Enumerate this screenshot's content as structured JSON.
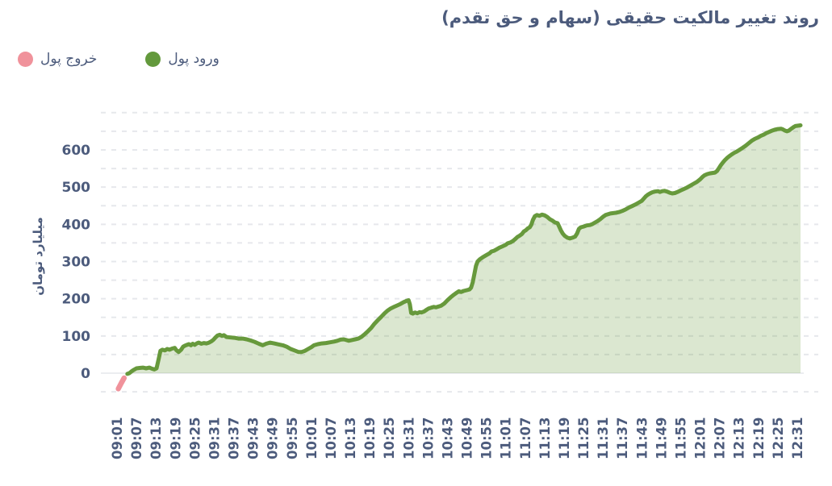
{
  "title": "روند تغییر مالکیت حقیقی (سهام و حق تقدم)",
  "legend": {
    "outflow": {
      "label": "خروج پول",
      "color": "#f0929b"
    },
    "inflow": {
      "label": "ورود پول",
      "color": "#63993c"
    }
  },
  "y_axis": {
    "title": "میلیارد تومان",
    "ticks": [
      0,
      100,
      200,
      300,
      400,
      500,
      600
    ]
  },
  "x_axis": {
    "ticks": [
      "09:01",
      "09:07",
      "09:13",
      "09:19",
      "09:25",
      "09:31",
      "09:37",
      "09:43",
      "09:49",
      "09:55",
      "10:01",
      "10:07",
      "10:13",
      "10:19",
      "10:25",
      "10:31",
      "10:37",
      "10:43",
      "10:49",
      "10:55",
      "11:01",
      "11:07",
      "11:13",
      "11:19",
      "11:25",
      "11:31",
      "11:37",
      "11:43",
      "11:49",
      "11:55",
      "12:01",
      "12:07",
      "12:13",
      "12:19",
      "12:25",
      "12:31"
    ]
  },
  "chart_data": {
    "type": "area",
    "title": "روند تغییر مالکیت حقیقی (سهام و حق تقدم)",
    "ylabel": "میلیارد تومان",
    "x_start": "09:01",
    "x_end": "12:31",
    "x_tick_interval_minutes": 6,
    "ylim": [
      -60,
      700
    ],
    "grid_step": 50,
    "grid_dashed": true,
    "legend_position": "top-left",
    "series": [
      {
        "name": "ورود پول",
        "color": "#67993c",
        "fill": "rgba(103,153,60,0.24)",
        "points_format": "[minutes_after_09:01, billion_toman]",
        "points": [
          [
            3.2,
            -2
          ],
          [
            3.8,
            0
          ],
          [
            4.5,
            5
          ],
          [
            5,
            8
          ],
          [
            6,
            13
          ],
          [
            7,
            14
          ],
          [
            8,
            15
          ],
          [
            9,
            13
          ],
          [
            10,
            15
          ],
          [
            10.8,
            12
          ],
          [
            11.5,
            10
          ],
          [
            12.2,
            13
          ],
          [
            12.8,
            36
          ],
          [
            13.4,
            60
          ],
          [
            14,
            63
          ],
          [
            14.8,
            61
          ],
          [
            15.5,
            65
          ],
          [
            16.2,
            63
          ],
          [
            17,
            66
          ],
          [
            17.8,
            68
          ],
          [
            18.3,
            62
          ],
          [
            19,
            57
          ],
          [
            19.8,
            63
          ],
          [
            20.4,
            71
          ],
          [
            21,
            74
          ],
          [
            21.6,
            76
          ],
          [
            22.2,
            78
          ],
          [
            22.8,
            75
          ],
          [
            23.4,
            79
          ],
          [
            24,
            76
          ],
          [
            24.6,
            80
          ],
          [
            25.2,
            82
          ],
          [
            26,
            79
          ],
          [
            26.8,
            81
          ],
          [
            27.6,
            80
          ],
          [
            28.4,
            82
          ],
          [
            29.2,
            86
          ],
          [
            29.8,
            90
          ],
          [
            30.4,
            96
          ],
          [
            31,
            101
          ],
          [
            31.7,
            103
          ],
          [
            32.4,
            100
          ],
          [
            33,
            102
          ],
          [
            33.8,
            97
          ],
          [
            35,
            96
          ],
          [
            36.2,
            95
          ],
          [
            37.5,
            93
          ],
          [
            38.8,
            93
          ],
          [
            40,
            91
          ],
          [
            41.2,
            88
          ],
          [
            42.5,
            84
          ],
          [
            43.8,
            79
          ],
          [
            45,
            75
          ],
          [
            46,
            79
          ],
          [
            47.2,
            82
          ],
          [
            48.5,
            80
          ],
          [
            50,
            77
          ],
          [
            51.2,
            75
          ],
          [
            52.4,
            71
          ],
          [
            53.6,
            65
          ],
          [
            54.8,
            61
          ],
          [
            56,
            57
          ],
          [
            57,
            57
          ],
          [
            58,
            60
          ],
          [
            59,
            65
          ],
          [
            60,
            70
          ],
          [
            60.8,
            75
          ],
          [
            62,
            78
          ],
          [
            63.2,
            80
          ],
          [
            64.5,
            81
          ],
          [
            65.8,
            83
          ],
          [
            67,
            85
          ],
          [
            68,
            87
          ],
          [
            69,
            90
          ],
          [
            70,
            91
          ],
          [
            70.8,
            89
          ],
          [
            71.5,
            87
          ],
          [
            72.5,
            89
          ],
          [
            73.5,
            91
          ],
          [
            74.5,
            93
          ],
          [
            75.5,
            98
          ],
          [
            76.5,
            105
          ],
          [
            77.5,
            113
          ],
          [
            78.5,
            122
          ],
          [
            79.5,
            133
          ],
          [
            80.5,
            142
          ],
          [
            81.5,
            151
          ],
          [
            82.5,
            160
          ],
          [
            83.5,
            168
          ],
          [
            84.5,
            174
          ],
          [
            85.5,
            178
          ],
          [
            86.5,
            182
          ],
          [
            87.5,
            186
          ],
          [
            88.5,
            191
          ],
          [
            89.3,
            194
          ],
          [
            90,
            196
          ],
          [
            90.4,
            185
          ],
          [
            90.8,
            162
          ],
          [
            91.3,
            160
          ],
          [
            92,
            163
          ],
          [
            92.7,
            161
          ],
          [
            93.4,
            164
          ],
          [
            94,
            163
          ],
          [
            94.8,
            166
          ],
          [
            95.5,
            170
          ],
          [
            96.2,
            174
          ],
          [
            97,
            176
          ],
          [
            97.8,
            178
          ],
          [
            98.5,
            177
          ],
          [
            99.2,
            179
          ],
          [
            100,
            181
          ],
          [
            101,
            187
          ],
          [
            102,
            196
          ],
          [
            103,
            204
          ],
          [
            104,
            211
          ],
          [
            104.8,
            216
          ],
          [
            105.5,
            220
          ],
          [
            106.2,
            218
          ],
          [
            107,
            221
          ],
          [
            108,
            223
          ],
          [
            108.8,
            225
          ],
          [
            109.3,
            230
          ],
          [
            109.8,
            244
          ],
          [
            110.3,
            266
          ],
          [
            110.8,
            288
          ],
          [
            111.3,
            300
          ],
          [
            112,
            306
          ],
          [
            113,
            312
          ],
          [
            114,
            317
          ],
          [
            115,
            322
          ],
          [
            115.6,
            327
          ],
          [
            116.4,
            329
          ],
          [
            117.2,
            333
          ],
          [
            118,
            337
          ],
          [
            119,
            341
          ],
          [
            120,
            345
          ],
          [
            120.6,
            349
          ],
          [
            121.4,
            351
          ],
          [
            122.2,
            355
          ],
          [
            123,
            361
          ],
          [
            123.6,
            366
          ],
          [
            124.2,
            369
          ],
          [
            125,
            374
          ],
          [
            125.6,
            381
          ],
          [
            126.2,
            384
          ],
          [
            126.8,
            389
          ],
          [
            127.4,
            392
          ],
          [
            127.9,
            399
          ],
          [
            128.4,
            412
          ],
          [
            129,
            422
          ],
          [
            129.6,
            425
          ],
          [
            130.4,
            423
          ],
          [
            131.2,
            426
          ],
          [
            132,
            424
          ],
          [
            132.8,
            420
          ],
          [
            133.6,
            414
          ],
          [
            134.4,
            410
          ],
          [
            135.2,
            405
          ],
          [
            136,
            403
          ],
          [
            136.4,
            396
          ],
          [
            137,
            384
          ],
          [
            137.6,
            375
          ],
          [
            138.2,
            369
          ],
          [
            139,
            364
          ],
          [
            139.8,
            362
          ],
          [
            140.6,
            364
          ],
          [
            141.4,
            367
          ],
          [
            142,
            375
          ],
          [
            142.6,
            388
          ],
          [
            143.2,
            392
          ],
          [
            144,
            394
          ],
          [
            145,
            397
          ],
          [
            146,
            398
          ],
          [
            146.8,
            401
          ],
          [
            147.6,
            405
          ],
          [
            148.4,
            409
          ],
          [
            149.2,
            414
          ],
          [
            150,
            420
          ],
          [
            150.8,
            425
          ],
          [
            151.5,
            427
          ],
          [
            152.3,
            429
          ],
          [
            153,
            430
          ],
          [
            154,
            431
          ],
          [
            155,
            433
          ],
          [
            156,
            436
          ],
          [
            157,
            440
          ],
          [
            158,
            445
          ],
          [
            159,
            449
          ],
          [
            160,
            453
          ],
          [
            161,
            458
          ],
          [
            162,
            463
          ],
          [
            162.6,
            469
          ],
          [
            163.2,
            475
          ],
          [
            163.8,
            479
          ],
          [
            164.5,
            483
          ],
          [
            165.2,
            486
          ],
          [
            166,
            488
          ],
          [
            167,
            489
          ],
          [
            167.6,
            487
          ],
          [
            168.3,
            489
          ],
          [
            169,
            490
          ],
          [
            169.8,
            488
          ],
          [
            170.6,
            485
          ],
          [
            171.4,
            483
          ],
          [
            172.2,
            484
          ],
          [
            173,
            487
          ],
          [
            174,
            491
          ],
          [
            175,
            495
          ],
          [
            176,
            499
          ],
          [
            177,
            504
          ],
          [
            178,
            509
          ],
          [
            179,
            514
          ],
          [
            180,
            521
          ],
          [
            180.8,
            528
          ],
          [
            181.4,
            532
          ],
          [
            182.2,
            535
          ],
          [
            183,
            537
          ],
          [
            183.8,
            538
          ],
          [
            184.6,
            539
          ],
          [
            185.2,
            543
          ],
          [
            185.8,
            551
          ],
          [
            186.4,
            559
          ],
          [
            187,
            566
          ],
          [
            187.6,
            572
          ],
          [
            188.3,
            578
          ],
          [
            189,
            583
          ],
          [
            189.8,
            588
          ],
          [
            190.5,
            592
          ],
          [
            191.2,
            595
          ],
          [
            192,
            599
          ],
          [
            193,
            605
          ],
          [
            194,
            611
          ],
          [
            195,
            618
          ],
          [
            196,
            625
          ],
          [
            197,
            630
          ],
          [
            198,
            634
          ],
          [
            198.8,
            638
          ],
          [
            199.6,
            641
          ],
          [
            200.4,
            645
          ],
          [
            201.2,
            648
          ],
          [
            202,
            651
          ],
          [
            203,
            654
          ],
          [
            204,
            656
          ],
          [
            205,
            657
          ],
          [
            205.6,
            655
          ],
          [
            206.2,
            652
          ],
          [
            206.8,
            650
          ],
          [
            207.4,
            652
          ],
          [
            208,
            656
          ],
          [
            208.8,
            661
          ],
          [
            209.4,
            664
          ],
          [
            211,
            666
          ]
        ]
      },
      {
        "name": "خروج پول",
        "color": "#f0929b",
        "points_format": "[minutes_after_09:01, billion_toman]",
        "points": [
          [
            0.4,
            -42
          ],
          [
            1.3,
            -27
          ],
          [
            2.2,
            -13
          ]
        ]
      }
    ]
  }
}
